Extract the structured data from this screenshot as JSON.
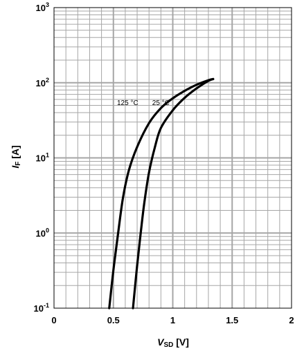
{
  "chart_data": {
    "type": "line",
    "xlabel": {
      "symbol": "V",
      "subscript": "SD",
      "unit": "[V]"
    },
    "ylabel": {
      "symbol": "I",
      "subscript": "F",
      "unit": "[A]"
    },
    "xlim": [
      0,
      2
    ],
    "ylim": [
      0.1,
      1000
    ],
    "yscale": "log",
    "grid": true,
    "x_ticks": [
      {
        "value": 0,
        "label": "0"
      },
      {
        "value": 0.5,
        "label": "0.5"
      },
      {
        "value": 1,
        "label": "1"
      },
      {
        "value": 1.5,
        "label": "1.5"
      },
      {
        "value": 2,
        "label": "2"
      }
    ],
    "y_ticks": [
      {
        "value": 0.1,
        "base": "10",
        "exp": "-1"
      },
      {
        "value": 1,
        "base": "10",
        "exp": "0"
      },
      {
        "value": 10,
        "base": "10",
        "exp": "1"
      },
      {
        "value": 100,
        "base": "10",
        "exp": "2"
      },
      {
        "value": 1000,
        "base": "10",
        "exp": "3"
      }
    ],
    "series": [
      {
        "name": "125 °C",
        "label_at": [
          0.62,
          55
        ],
        "points": [
          [
            0.465,
            0.1
          ],
          [
            0.5,
            0.32
          ],
          [
            0.54,
            1.0
          ],
          [
            0.58,
            2.9
          ],
          [
            0.63,
            6.8
          ],
          [
            0.7,
            14
          ],
          [
            0.8,
            29
          ],
          [
            0.9,
            46
          ],
          [
            1.0,
            62
          ],
          [
            1.1,
            78
          ],
          [
            1.2,
            94
          ],
          [
            1.3,
            108
          ],
          [
            1.34,
            112
          ]
        ]
      },
      {
        "name": "25 °C",
        "label_at": [
          0.9,
          55
        ],
        "points": [
          [
            0.665,
            0.1
          ],
          [
            0.7,
            0.37
          ],
          [
            0.73,
            1.0
          ],
          [
            0.76,
            2.5
          ],
          [
            0.8,
            6.4
          ],
          [
            0.85,
            14
          ],
          [
            0.9,
            25
          ],
          [
            1.0,
            43
          ],
          [
            1.1,
            63
          ],
          [
            1.2,
            84
          ],
          [
            1.3,
            106
          ],
          [
            1.34,
            112
          ]
        ]
      }
    ]
  }
}
